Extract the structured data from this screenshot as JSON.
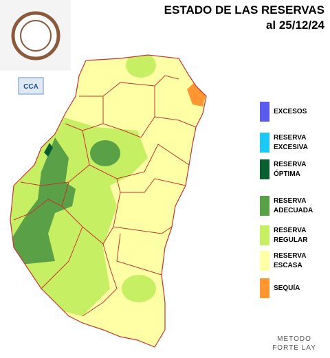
{
  "title": "ESTADO DE LAS RESERVAS",
  "date": "al 25/12/24",
  "logo_text": "CCA",
  "legend": [
    {
      "lines": [
        "EXCESOS"
      ],
      "color": "#5a5aee"
    },
    {
      "lines": [
        "RESERVA",
        "EXCESIVA"
      ],
      "color": "#1ec8f5"
    },
    {
      "lines": [
        "RESERVA",
        "ÓPTIMA"
      ],
      "color": "#0b5e30"
    },
    {
      "lines": [
        "RESERVA",
        "ADECUADA"
      ],
      "color": "#5aa046"
    },
    {
      "lines": [
        "RESERVA",
        "REGULAR"
      ],
      "color": "#c6ef64"
    },
    {
      "lines": [
        "RESERVA",
        "ESCASA"
      ],
      "color": "#ffffa5"
    },
    {
      "lines": [
        "SEQUÍA"
      ],
      "color": "#ff9632"
    }
  ],
  "method": [
    "METODO",
    "FORTE LAY"
  ]
}
